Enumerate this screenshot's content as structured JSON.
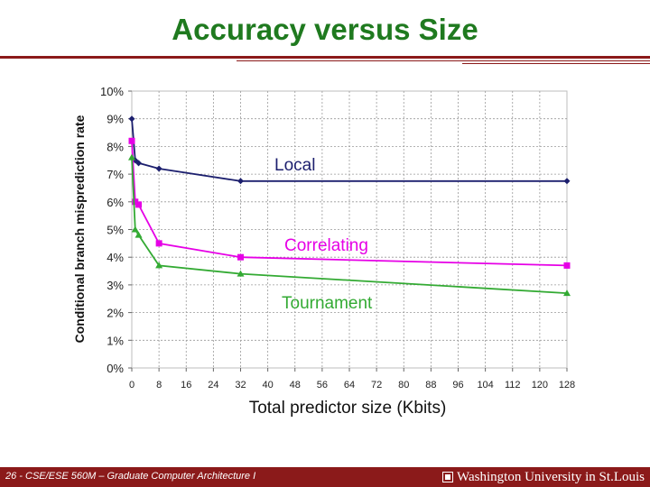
{
  "slide": {
    "title": "Accuracy versus Size",
    "footer": "26 - CSE/ESE 560M – Graduate Computer Architecture I",
    "university": "Washington University in St.Louis"
  },
  "colors": {
    "title": "#1f7a1f",
    "band": "#8b1a1a",
    "local": "#1c1f6e",
    "correlating": "#e600e6",
    "tournament": "#33aa33"
  },
  "chart_data": {
    "type": "line",
    "xlabel": "Total predictor size (Kbits)",
    "ylabel": "Conditional branch misprediction rate",
    "x_ticks": [
      0,
      8,
      16,
      24,
      32,
      40,
      48,
      56,
      64,
      72,
      80,
      88,
      96,
      104,
      112,
      120,
      128
    ],
    "y_ticks": [
      "0%",
      "1%",
      "2%",
      "3%",
      "4%",
      "5%",
      "6%",
      "7%",
      "8%",
      "9%",
      "10%"
    ],
    "xlim": [
      0,
      128
    ],
    "ylim": [
      0,
      10
    ],
    "grid": true,
    "series": [
      {
        "name": "Local",
        "color": "#1c1f6e",
        "marker": "diamond",
        "x": [
          0,
          1,
          2,
          8,
          32,
          128
        ],
        "y": [
          9.0,
          7.5,
          7.4,
          7.2,
          6.75,
          6.75
        ]
      },
      {
        "name": "Correlating",
        "color": "#e600e6",
        "marker": "square",
        "x": [
          0,
          1,
          2,
          8,
          32,
          128
        ],
        "y": [
          8.2,
          6.0,
          5.9,
          4.5,
          4.0,
          3.7
        ]
      },
      {
        "name": "Tournament",
        "color": "#33aa33",
        "marker": "triangle",
        "x": [
          0,
          1,
          2,
          8,
          32,
          128
        ],
        "y": [
          7.6,
          5.0,
          4.8,
          3.7,
          3.4,
          2.7
        ]
      }
    ]
  }
}
